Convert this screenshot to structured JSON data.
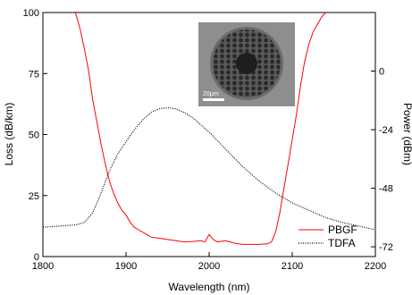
{
  "chart_data": {
    "type": "line",
    "xlabel": "Wavelength (nm)",
    "ylabel_left": "Loss (dB/km)",
    "ylabel_right": "Power (dBm)",
    "xlim": [
      1800,
      2200
    ],
    "ylim_left": [
      0,
      100
    ],
    "ylim_right": [
      -76,
      24
    ],
    "x_ticks": [
      "1800",
      "1900",
      "2000",
      "2100",
      "2200"
    ],
    "y_left_ticks": [
      "0",
      "25",
      "50",
      "75",
      "100"
    ],
    "y_right_ticks": [
      "0",
      "-24",
      "-48",
      "-72"
    ],
    "legend_position": "bottom-right",
    "series": [
      {
        "name": "PBGF",
        "axis": "left",
        "color": "#ff0000",
        "style": "solid",
        "points": [
          [
            1839,
            100
          ],
          [
            1845,
            93
          ],
          [
            1850,
            85
          ],
          [
            1855,
            76
          ],
          [
            1860,
            64
          ],
          [
            1865,
            55
          ],
          [
            1870,
            46
          ],
          [
            1875,
            38
          ],
          [
            1880,
            31
          ],
          [
            1885,
            26
          ],
          [
            1890,
            22
          ],
          [
            1895,
            19
          ],
          [
            1900,
            17
          ],
          [
            1905,
            14
          ],
          [
            1910,
            12
          ],
          [
            1915,
            11
          ],
          [
            1920,
            10
          ],
          [
            1925,
            9
          ],
          [
            1930,
            8
          ],
          [
            1940,
            7.5
          ],
          [
            1950,
            7
          ],
          [
            1960,
            6.5
          ],
          [
            1970,
            6
          ],
          [
            1980,
            6.2
          ],
          [
            1990,
            6.5
          ],
          [
            1995,
            6
          ],
          [
            2000,
            9
          ],
          [
            2005,
            7
          ],
          [
            2010,
            6
          ],
          [
            2020,
            6.5
          ],
          [
            2030,
            5.5
          ],
          [
            2040,
            5
          ],
          [
            2050,
            5
          ],
          [
            2060,
            5
          ],
          [
            2070,
            5.2
          ],
          [
            2075,
            6
          ],
          [
            2080,
            10
          ],
          [
            2085,
            18
          ],
          [
            2090,
            28
          ],
          [
            2095,
            38
          ],
          [
            2100,
            48
          ],
          [
            2105,
            58
          ],
          [
            2110,
            70
          ],
          [
            2115,
            80
          ],
          [
            2120,
            87
          ],
          [
            2125,
            92
          ],
          [
            2130,
            95
          ],
          [
            2135,
            98
          ],
          [
            2140,
            100
          ]
        ]
      },
      {
        "name": "TDFA",
        "axis": "right",
        "color": "#000000",
        "style": "dotted",
        "points": [
          [
            1800,
            -64
          ],
          [
            1820,
            -63.5
          ],
          [
            1840,
            -63
          ],
          [
            1850,
            -62
          ],
          [
            1860,
            -58
          ],
          [
            1870,
            -50
          ],
          [
            1880,
            -41
          ],
          [
            1890,
            -34
          ],
          [
            1900,
            -29
          ],
          [
            1910,
            -24
          ],
          [
            1920,
            -20
          ],
          [
            1930,
            -17
          ],
          [
            1940,
            -15.5
          ],
          [
            1950,
            -15
          ],
          [
            1960,
            -15.5
          ],
          [
            1970,
            -17
          ],
          [
            1980,
            -19
          ],
          [
            1990,
            -22
          ],
          [
            2000,
            -25
          ],
          [
            2020,
            -32
          ],
          [
            2040,
            -39
          ],
          [
            2060,
            -45
          ],
          [
            2080,
            -50
          ],
          [
            2100,
            -54
          ],
          [
            2120,
            -57
          ],
          [
            2140,
            -60
          ],
          [
            2160,
            -62
          ],
          [
            2180,
            -63.5
          ],
          [
            2200,
            -65
          ]
        ]
      }
    ],
    "inset": {
      "scale_label": "20μm"
    }
  }
}
